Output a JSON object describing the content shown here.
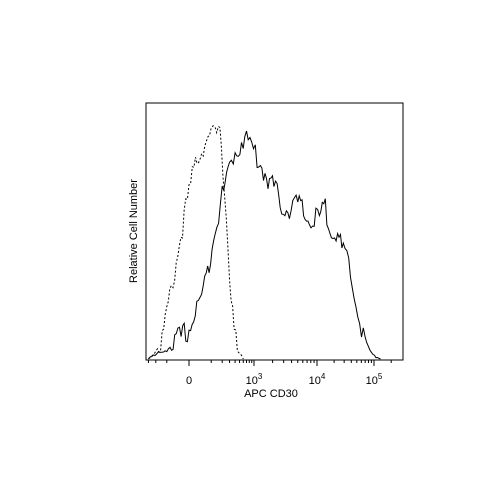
{
  "chart_data": {
    "type": "line",
    "title": "",
    "xlabel": "APC CD30",
    "ylabel": "Relative Cell Number",
    "x_scale": "biexponential",
    "x_tick_labels": [
      {
        "base": "0",
        "exp": ""
      },
      {
        "base": "10",
        "exp": "3"
      },
      {
        "base": "10",
        "exp": "4"
      },
      {
        "base": "10",
        "exp": "5"
      }
    ],
    "xlim": [
      -300,
      200000
    ],
    "ylim": [
      0,
      1
    ],
    "grid": false,
    "legend": "none",
    "series": [
      {
        "style": "dashed",
        "x": [
          -300,
          -150,
          -80,
          -20,
          20,
          60,
          100,
          130,
          160,
          190,
          230,
          300,
          380,
          450,
          600
        ],
        "y": [
          0.0,
          0.06,
          0.25,
          0.55,
          0.82,
          0.9,
          0.92,
          0.93,
          0.94,
          0.9,
          0.7,
          0.35,
          0.12,
          0.03,
          0.0
        ]
      },
      {
        "style": "solid",
        "x": [
          -300,
          -100,
          0,
          60,
          130,
          200,
          300,
          400,
          550,
          700,
          900,
          1200,
          1600,
          2100,
          2800,
          3700,
          5000,
          6500,
          8500,
          11000,
          14000,
          18000,
          23000,
          29000,
          36000,
          45000,
          56000,
          70000,
          90000,
          130000
        ],
        "y": [
          0.0,
          0.04,
          0.12,
          0.3,
          0.55,
          0.67,
          0.8,
          0.86,
          0.9,
          0.92,
          0.88,
          0.82,
          0.76,
          0.71,
          0.64,
          0.62,
          0.65,
          0.59,
          0.57,
          0.59,
          0.62,
          0.55,
          0.5,
          0.44,
          0.38,
          0.28,
          0.16,
          0.07,
          0.02,
          0.0
        ]
      }
    ]
  }
}
